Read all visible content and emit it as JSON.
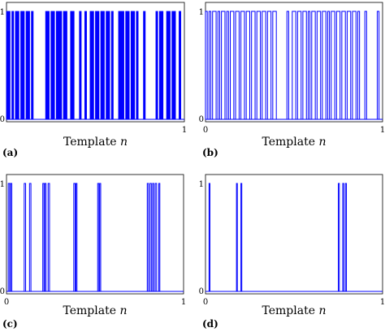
{
  "chart_data": [
    {
      "panel_label": "(a)",
      "type": "line",
      "style": "binary-step",
      "xlabel": "Template",
      "xlabel_var": "n",
      "x_ticks": [
        "1"
      ],
      "y_ticks": [
        "0",
        "1"
      ],
      "xlim": [
        0,
        1
      ],
      "ylim": [
        0,
        1
      ],
      "color": "#0000ff",
      "fill": true,
      "on_intervals": [
        [
          0.0,
          0.02
        ],
        [
          0.03,
          0.04
        ],
        [
          0.05,
          0.07
        ],
        [
          0.08,
          0.1
        ],
        [
          0.11,
          0.13
        ],
        [
          0.14,
          0.15
        ],
        [
          0.22,
          0.24
        ],
        [
          0.25,
          0.27
        ],
        [
          0.28,
          0.31
        ],
        [
          0.32,
          0.34
        ],
        [
          0.36,
          0.38
        ],
        [
          0.41,
          0.42
        ],
        [
          0.44,
          0.45
        ],
        [
          0.47,
          0.49
        ],
        [
          0.5,
          0.52
        ],
        [
          0.53,
          0.55
        ],
        [
          0.56,
          0.58
        ],
        [
          0.59,
          0.6
        ],
        [
          0.63,
          0.66
        ],
        [
          0.67,
          0.69
        ],
        [
          0.7,
          0.72
        ],
        [
          0.73,
          0.74
        ],
        [
          0.77,
          0.78
        ],
        [
          0.84,
          0.85
        ],
        [
          0.86,
          0.88
        ],
        [
          0.9,
          0.92
        ],
        [
          0.93,
          0.95
        ],
        [
          0.97,
          0.98
        ]
      ]
    },
    {
      "panel_label": "(b)",
      "type": "line",
      "style": "binary-step",
      "xlabel": "Template",
      "xlabel_var": "n",
      "x_ticks": [
        "0",
        "1"
      ],
      "y_ticks": [
        "0",
        "1"
      ],
      "xlim": [
        0,
        1
      ],
      "ylim": [
        0,
        1
      ],
      "color": "#0000ff",
      "fill": false,
      "on_intervals": [
        [
          0.0,
          0.01
        ],
        [
          0.02,
          0.03
        ],
        [
          0.04,
          0.06
        ],
        [
          0.07,
          0.08
        ],
        [
          0.09,
          0.11
        ],
        [
          0.12,
          0.13
        ],
        [
          0.14,
          0.16
        ],
        [
          0.17,
          0.19
        ],
        [
          0.2,
          0.22
        ],
        [
          0.23,
          0.25
        ],
        [
          0.26,
          0.28
        ],
        [
          0.29,
          0.31
        ],
        [
          0.32,
          0.34
        ],
        [
          0.35,
          0.37
        ],
        [
          0.38,
          0.4
        ],
        [
          0.46,
          0.47
        ],
        [
          0.49,
          0.51
        ],
        [
          0.52,
          0.54
        ],
        [
          0.55,
          0.57
        ],
        [
          0.58,
          0.59
        ],
        [
          0.6,
          0.62
        ],
        [
          0.63,
          0.65
        ],
        [
          0.66,
          0.68
        ],
        [
          0.69,
          0.7
        ],
        [
          0.71,
          0.73
        ],
        [
          0.74,
          0.76
        ],
        [
          0.77,
          0.79
        ],
        [
          0.8,
          0.82
        ],
        [
          0.83,
          0.85
        ],
        [
          0.86,
          0.87
        ],
        [
          0.9,
          0.91
        ],
        [
          0.97,
          0.98
        ]
      ]
    },
    {
      "panel_label": "(c)",
      "type": "line",
      "style": "binary-step",
      "xlabel": "Template",
      "xlabel_var": "n",
      "x_ticks": [
        "0",
        "1"
      ],
      "y_ticks": [
        "0",
        "1"
      ],
      "xlim": [
        0,
        1
      ],
      "ylim": [
        0,
        1
      ],
      "color": "#0000ff",
      "fill": false,
      "on_intervals": [
        [
          0.01,
          0.018
        ],
        [
          0.023,
          0.03
        ],
        [
          0.1,
          0.108
        ],
        [
          0.13,
          0.138
        ],
        [
          0.205,
          0.212
        ],
        [
          0.216,
          0.223
        ],
        [
          0.235,
          0.243
        ],
        [
          0.38,
          0.388
        ],
        [
          0.392,
          0.398
        ],
        [
          0.515,
          0.522
        ],
        [
          0.526,
          0.532
        ],
        [
          0.795,
          0.802
        ],
        [
          0.81,
          0.818
        ],
        [
          0.825,
          0.832
        ],
        [
          0.84,
          0.848
        ],
        [
          0.86,
          0.866
        ]
      ]
    },
    {
      "panel_label": "(d)",
      "type": "line",
      "style": "binary-step",
      "xlabel": "Template",
      "xlabel_var": "n",
      "x_ticks": [
        "0",
        "1"
      ],
      "y_ticks": [
        "0",
        "1"
      ],
      "xlim": [
        0,
        1
      ],
      "ylim": [
        0,
        1
      ],
      "color": "#0000ff",
      "fill": false,
      "on_intervals": [
        [
          0.02,
          0.025
        ],
        [
          0.175,
          0.18
        ],
        [
          0.2,
          0.205
        ],
        [
          0.75,
          0.756
        ],
        [
          0.775,
          0.781
        ],
        [
          0.79,
          0.796
        ]
      ]
    }
  ]
}
